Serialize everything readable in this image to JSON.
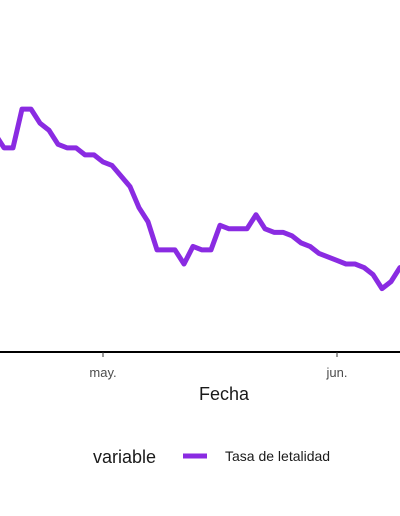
{
  "chart_data": {
    "type": "line",
    "xlabel": "Fecha",
    "ylabel": "",
    "x_tick_labels": [
      "may.",
      "jun."
    ],
    "legend": {
      "title": "variable",
      "position": "bottom"
    },
    "series": [
      {
        "name": "Tasa de letalidad",
        "color": "#8a2be2",
        "points": [
          [
            0,
            92
          ],
          [
            1,
            88
          ],
          [
            2,
            88
          ],
          [
            3,
            99
          ],
          [
            4,
            99
          ],
          [
            5,
            95
          ],
          [
            6,
            93
          ],
          [
            7,
            89
          ],
          [
            8,
            88
          ],
          [
            9,
            88
          ],
          [
            10,
            86
          ],
          [
            11,
            86
          ],
          [
            12,
            84
          ],
          [
            13,
            83
          ],
          [
            14,
            80
          ],
          [
            15,
            77
          ],
          [
            16,
            71
          ],
          [
            17,
            67
          ],
          [
            18,
            59
          ],
          [
            19,
            59
          ],
          [
            20,
            59
          ],
          [
            21,
            55
          ],
          [
            22,
            60
          ],
          [
            23,
            59
          ],
          [
            24,
            59
          ],
          [
            25,
            66
          ],
          [
            26,
            65
          ],
          [
            27,
            65
          ],
          [
            28,
            65
          ],
          [
            29,
            69
          ],
          [
            30,
            65
          ],
          [
            31,
            64
          ],
          [
            32,
            64
          ],
          [
            33,
            63
          ],
          [
            34,
            61
          ],
          [
            35,
            60
          ],
          [
            36,
            58
          ],
          [
            37,
            57
          ],
          [
            38,
            56
          ],
          [
            39,
            55
          ],
          [
            40,
            55
          ],
          [
            41,
            54
          ],
          [
            42,
            52
          ],
          [
            43,
            48
          ],
          [
            44,
            50
          ],
          [
            45,
            54
          ]
        ]
      }
    ],
    "x_tick_positions": [
      12,
      38
    ],
    "xlim": [
      0,
      45
    ],
    "ylim": [
      30,
      130
    ]
  }
}
